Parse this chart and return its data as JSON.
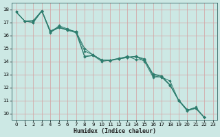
{
  "xlabel": "Humidex (Indice chaleur)",
  "bg_color": "#cce8e4",
  "grid_color": "#b0d4d0",
  "line_color": "#2e7d6e",
  "xlim": [
    -0.5,
    23.5
  ],
  "ylim": [
    9.5,
    18.5
  ],
  "xticks": [
    0,
    1,
    2,
    3,
    4,
    5,
    6,
    7,
    8,
    9,
    10,
    11,
    12,
    13,
    14,
    15,
    16,
    17,
    18,
    19,
    20,
    21,
    22,
    23
  ],
  "yticks": [
    10,
    11,
    12,
    13,
    14,
    15,
    16,
    17,
    18
  ],
  "series": [
    [
      17.8,
      17.1,
      17.0,
      17.9,
      16.3,
      16.6,
      16.4,
      16.3,
      14.4,
      14.5,
      14.1,
      14.1,
      14.2,
      14.3,
      14.4,
      14.2,
      12.9,
      12.8,
      12.5,
      11.0,
      10.3,
      10.4,
      9.7
    ],
    [
      17.8,
      17.1,
      17.0,
      17.85,
      16.2,
      16.75,
      16.5,
      16.25,
      14.8,
      14.5,
      14.1,
      14.05,
      14.2,
      14.4,
      14.15,
      14.1,
      13.0,
      12.85,
      12.2,
      11.05,
      10.3,
      10.4,
      9.7
    ],
    [
      17.8,
      17.1,
      17.15,
      17.9,
      16.35,
      16.65,
      16.45,
      16.3,
      15.0,
      14.5,
      14.12,
      14.1,
      14.25,
      14.35,
      14.35,
      14.15,
      13.05,
      12.9,
      12.2,
      11.0,
      10.25,
      10.5,
      9.7
    ],
    [
      17.8,
      17.1,
      17.1,
      17.9,
      16.25,
      16.6,
      16.4,
      16.2,
      14.35,
      14.45,
      14.0,
      14.1,
      14.2,
      14.3,
      14.4,
      14.0,
      12.8,
      12.8,
      12.15,
      11.0,
      10.2,
      10.4,
      9.7
    ]
  ]
}
